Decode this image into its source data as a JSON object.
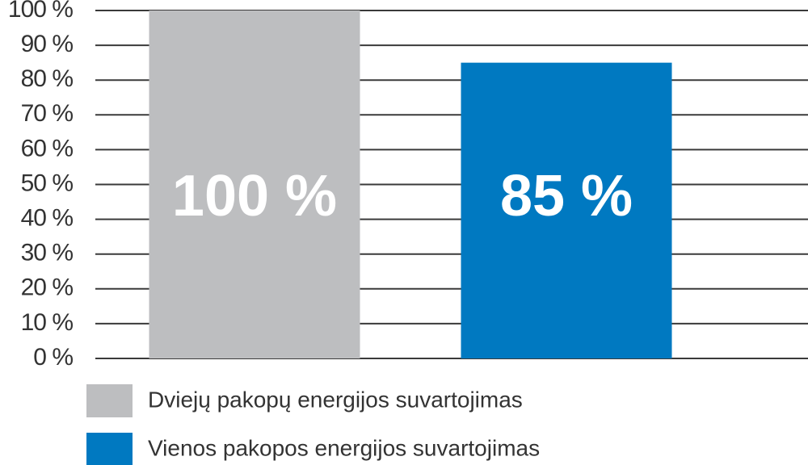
{
  "chart_data": {
    "type": "bar",
    "categories": [
      null,
      null
    ],
    "series": [
      {
        "name": "Dviejų pakopų energijos suvartojimas",
        "color": "#bdbec0",
        "values": [
          100,
          null
        ],
        "value_labels": [
          "100 %",
          null
        ]
      },
      {
        "name": "Vienos pakopos energijos suvartojimas",
        "color": "#0079c1",
        "values": [
          null,
          85
        ],
        "value_labels": [
          null,
          "85 %"
        ]
      }
    ],
    "ylim": [
      0,
      100
    ],
    "yticks": [
      {
        "value": 0,
        "label": "0 %"
      },
      {
        "value": 10,
        "label": "10 %"
      },
      {
        "value": 20,
        "label": "20 %"
      },
      {
        "value": 30,
        "label": "30 %"
      },
      {
        "value": 40,
        "label": "40 %"
      },
      {
        "value": 50,
        "label": "50 %"
      },
      {
        "value": 60,
        "label": "60 %"
      },
      {
        "value": 70,
        "label": "70 %"
      },
      {
        "value": 80,
        "label": "80 %"
      },
      {
        "value": 90,
        "label": "90 %"
      },
      {
        "value": 100,
        "label": "100 %"
      }
    ],
    "grid": true,
    "legend": "bottom"
  }
}
